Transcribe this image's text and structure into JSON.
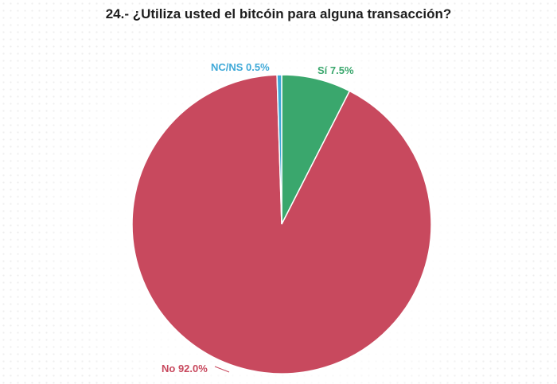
{
  "chart_data": {
    "type": "pie",
    "title": "24.- ¿Utiliza usted el bitcóin para alguna transacción?",
    "slices": [
      {
        "label": "Sí",
        "value": 7.5,
        "display": "Sí 7.5%",
        "color": "#3aa76d"
      },
      {
        "label": "No",
        "value": 92.0,
        "display": "No 92.0%",
        "color": "#c8495e"
      },
      {
        "label": "NC/NS",
        "value": 0.5,
        "display": "NC/NS 0.5%",
        "color": "#3fa9d8"
      }
    ],
    "legend": "none"
  }
}
